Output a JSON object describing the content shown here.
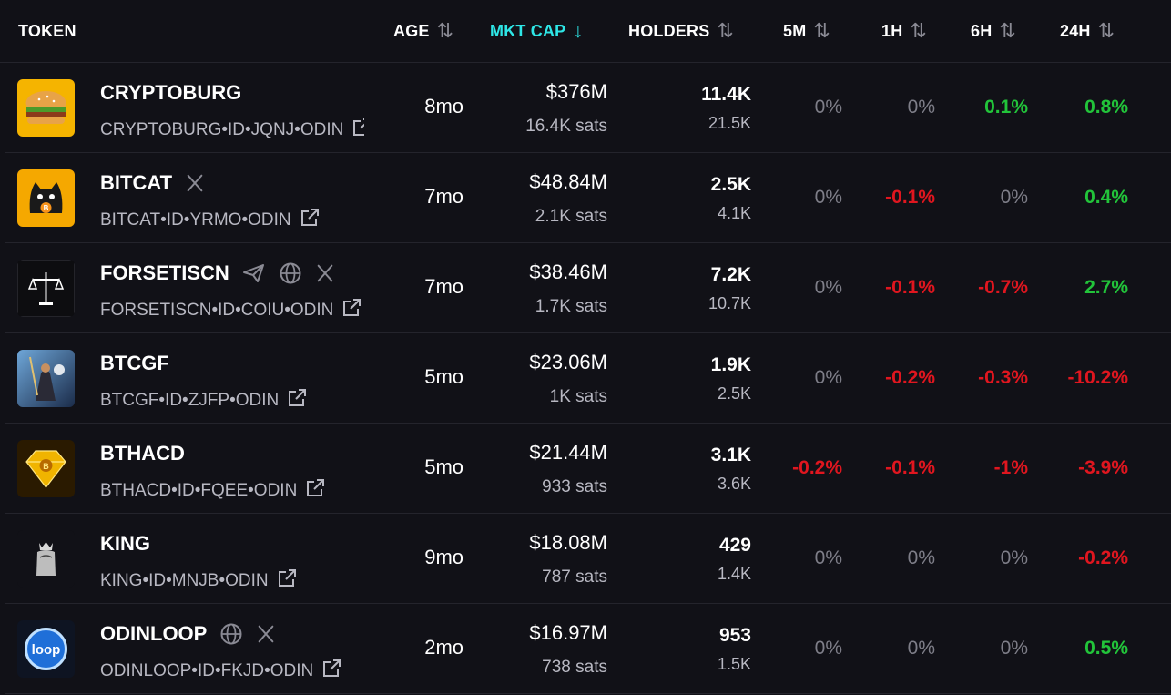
{
  "header": {
    "token": "TOKEN",
    "age": "AGE",
    "mkt_cap": "MKT CAP",
    "holders": "HOLDERS",
    "m5": "5M",
    "h1": "1H",
    "h6": "6H",
    "h24": "24H",
    "sort_icon": "⇅",
    "sort_active_icon": "↓"
  },
  "colors": {
    "background": "#111117",
    "active_header": "#2ee6e6",
    "positive": "#22c43a",
    "negative": "#e0161f",
    "neutral": "#7e7e88"
  },
  "rows": [
    {
      "name": "CRYPTOBURG",
      "id": "CRYPTOBURG•ID•JQNJ•ODIN",
      "age": "8mo",
      "mcap": "$376M",
      "sats": "16.4K sats",
      "holders": "11.4K",
      "holders_sub": "21.5K",
      "m5": "0%",
      "h1": "0%",
      "h6": "0.1%",
      "h24": "0.8%",
      "socials": [],
      "icon": "burger-icon"
    },
    {
      "name": "BITCAT",
      "id": "BITCAT•ID•YRMO•ODIN",
      "age": "7mo",
      "mcap": "$48.84M",
      "sats": "2.1K sats",
      "holders": "2.5K",
      "holders_sub": "4.1K",
      "m5": "0%",
      "h1": "-0.1%",
      "h6": "0%",
      "h24": "0.4%",
      "socials": [
        "x"
      ],
      "icon": "cat-icon"
    },
    {
      "name": "FORSETISCN",
      "id": "FORSETISCN•ID•COIU•ODIN",
      "age": "7mo",
      "mcap": "$38.46M",
      "sats": "1.7K sats",
      "holders": "7.2K",
      "holders_sub": "10.7K",
      "m5": "0%",
      "h1": "-0.1%",
      "h6": "-0.7%",
      "h24": "2.7%",
      "socials": [
        "telegram",
        "web",
        "x"
      ],
      "icon": "scales-icon"
    },
    {
      "name": "BTCGF",
      "id": "BTCGF•ID•ZJFP•ODIN",
      "age": "5mo",
      "mcap": "$23.06M",
      "sats": "1K sats",
      "holders": "1.9K",
      "holders_sub": "2.5K",
      "m5": "0%",
      "h1": "-0.2%",
      "h6": "-0.3%",
      "h24": "-10.2%",
      "socials": [],
      "icon": "warrior-icon"
    },
    {
      "name": "BTHACD",
      "id": "BTHACD•ID•FQEE•ODIN",
      "age": "5mo",
      "mcap": "$21.44M",
      "sats": "933 sats",
      "holders": "3.1K",
      "holders_sub": "3.6K",
      "m5": "-0.2%",
      "h1": "-0.1%",
      "h6": "-1%",
      "h24": "-3.9%",
      "socials": [],
      "icon": "diamond-icon"
    },
    {
      "name": "KING",
      "id": "KING•ID•MNJB•ODIN",
      "age": "9mo",
      "mcap": "$18.08M",
      "sats": "787 sats",
      "holders": "429",
      "holders_sub": "1.4K",
      "m5": "0%",
      "h1": "0%",
      "h6": "0%",
      "h24": "-0.2%",
      "socials": [],
      "icon": "king-icon"
    },
    {
      "name": "ODINLOOP",
      "id": "ODINLOOP•ID•FKJD•ODIN",
      "age": "2mo",
      "mcap": "$16.97M",
      "sats": "738 sats",
      "holders": "953",
      "holders_sub": "1.5K",
      "m5": "0%",
      "h1": "0%",
      "h6": "0%",
      "h24": "0.5%",
      "socials": [
        "web",
        "x"
      ],
      "icon": "loop-icon"
    }
  ]
}
